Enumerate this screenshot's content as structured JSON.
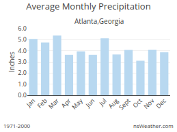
{
  "chart_data": {
    "type": "bar",
    "title": "Average Monthly Precipitation",
    "subtitle": "Atlanta,Georgia",
    "ylabel": "Inches",
    "categories": [
      "Jan",
      "Feb",
      "Mar",
      "Apr",
      "May",
      "Jun",
      "Jul",
      "Aug",
      "Sept",
      "Oct",
      "Nov",
      "Dec"
    ],
    "values": [
      5.07,
      4.75,
      5.38,
      3.63,
      3.95,
      3.63,
      5.12,
      3.67,
      4.09,
      3.11,
      4.1,
      3.88
    ],
    "color": "#b8d8f0",
    "ylim": [
      0,
      6.0
    ],
    "yticks": [
      {
        "value": 0.0,
        "label": "0.0"
      },
      {
        "value": 1.0,
        "label": "1.0"
      },
      {
        "value": 2.0,
        "label": "2.0"
      },
      {
        "value": 3.0,
        "label": "3.0"
      },
      {
        "value": 4.0,
        "label": "4.0"
      },
      {
        "value": 5.0,
        "label": "5.0"
      },
      {
        "value": 6.0,
        "label": "6.0"
      }
    ],
    "grid": true,
    "annotations": [
      "1971-2000",
      "nsWeather.com"
    ]
  }
}
